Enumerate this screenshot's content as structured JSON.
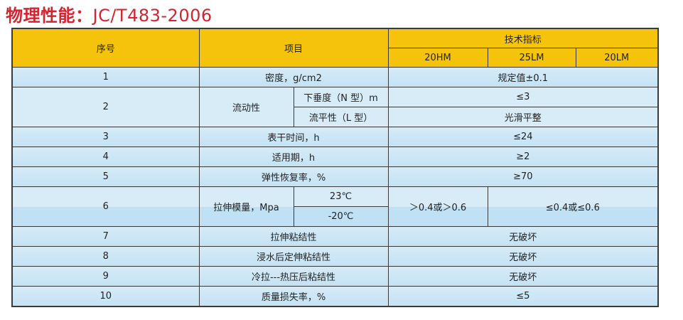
{
  "title": {
    "bold": "物理性能：",
    "standard": "JC/T483-2006"
  },
  "colors": {
    "title": "#d7232e",
    "header_bg": "#f5c20c",
    "row_bg": "#c3e2f4",
    "border": "#3a3a3a"
  },
  "header": {
    "no": "序号",
    "item": "项目",
    "spec": "技术指标",
    "models": [
      "20HM",
      "25LM",
      "20LM"
    ]
  },
  "rows": [
    {
      "no": "1",
      "item": "密度，g/cm2",
      "value": "规定值±0.1"
    },
    {
      "no": "2",
      "item": "流动性",
      "subs": [
        {
          "label": "下垂度（N 型）m",
          "value": "≤3"
        },
        {
          "label": "流平性（L 型）",
          "value": "光滑平整"
        }
      ]
    },
    {
      "no": "3",
      "item": "表干时间，h",
      "value": "≤24"
    },
    {
      "no": "4",
      "item": "适用期，h",
      "value": "≥2"
    },
    {
      "no": "5",
      "item": "弹性恢复率，%",
      "value": "≥70"
    },
    {
      "no": "6",
      "item": "拉伸模量，Mpa",
      "subs": [
        {
          "label": "23℃"
        },
        {
          "label": "-20℃"
        }
      ],
      "value_20HM": "＞0.4或＞0.6",
      "value_LM": "≤0.4或≤0.6"
    },
    {
      "no": "7",
      "item": "拉伸粘结性",
      "value": "无破坏"
    },
    {
      "no": "8",
      "item": "浸水后定伸粘结性",
      "value": "无破坏"
    },
    {
      "no": "9",
      "item": "冷拉---热压后粘结性",
      "value": "无破坏"
    },
    {
      "no": "10",
      "item": "质量损失率，%",
      "value": "≤5"
    }
  ]
}
